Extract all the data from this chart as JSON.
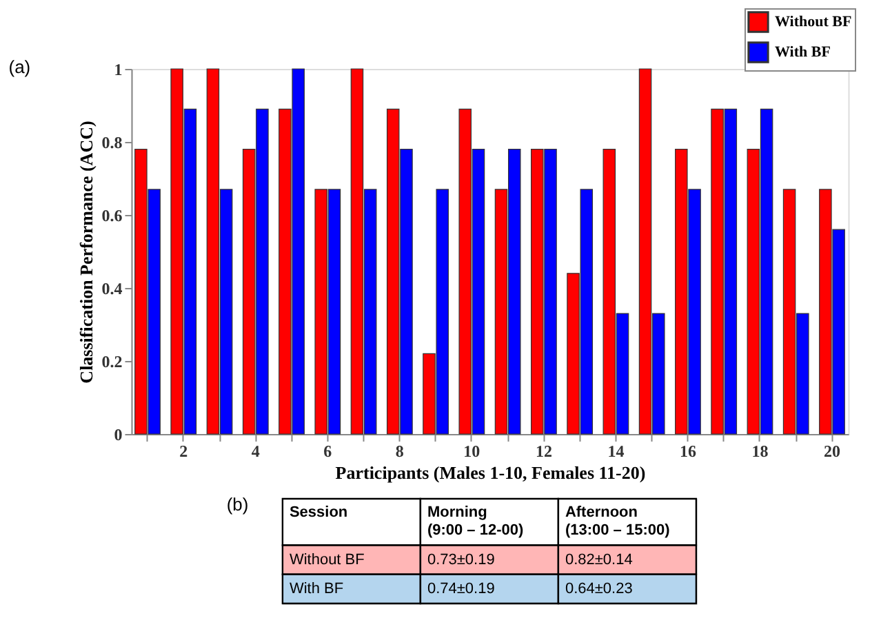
{
  "chart_data": [
    {
      "type": "bar",
      "title": "(a)",
      "xlabel": "Participants (Males 1-10, Females 11-20)",
      "ylabel": "Classification Performance (ACC)",
      "categories": [
        null,
        "2",
        null,
        "4",
        null,
        "6",
        null,
        "8",
        null,
        "10",
        null,
        "12",
        null,
        "14",
        null,
        "16",
        null,
        "18",
        null,
        "20"
      ],
      "series": [
        {
          "name": "Without BF",
          "color": "#ff0000",
          "values": [
            0.78,
            1,
            1,
            0.78,
            0.89,
            0.67,
            1,
            0.89,
            0.22,
            0.89,
            0.67,
            0.78,
            0.44,
            0.78,
            1,
            0.78,
            0.89,
            0.78,
            0.67,
            0.67
          ]
        },
        {
          "name": "With BF",
          "color": "#0000ff",
          "values": [
            0.67,
            0.89,
            0.67,
            0.89,
            1,
            0.67,
            0.67,
            0.78,
            0.67,
            0.78,
            0.78,
            0.78,
            0.67,
            0.33,
            0.33,
            0.67,
            0.89,
            0.89,
            0.33,
            0.56
          ]
        }
      ],
      "ylim": [
        0,
        1
      ],
      "yticks": [
        0,
        0.2,
        0.4,
        0.6,
        0.8,
        1
      ],
      "grid": false,
      "legend": "top right"
    },
    {
      "type": "other",
      "title": "(b)",
      "colors": [
        "#ffffff",
        "#ffb6b6",
        "#b4d5ee"
      ],
      "annotations": [
        "Session",
        "Morning\n(9:00 – 12-00)",
        "Afternoon\n(13:00 – 15:00)",
        "Without BF",
        "0.73±0.19",
        "0.82±0.14",
        "With BF",
        "0.74±0.19",
        "0.64±0.23"
      ]
    }
  ]
}
